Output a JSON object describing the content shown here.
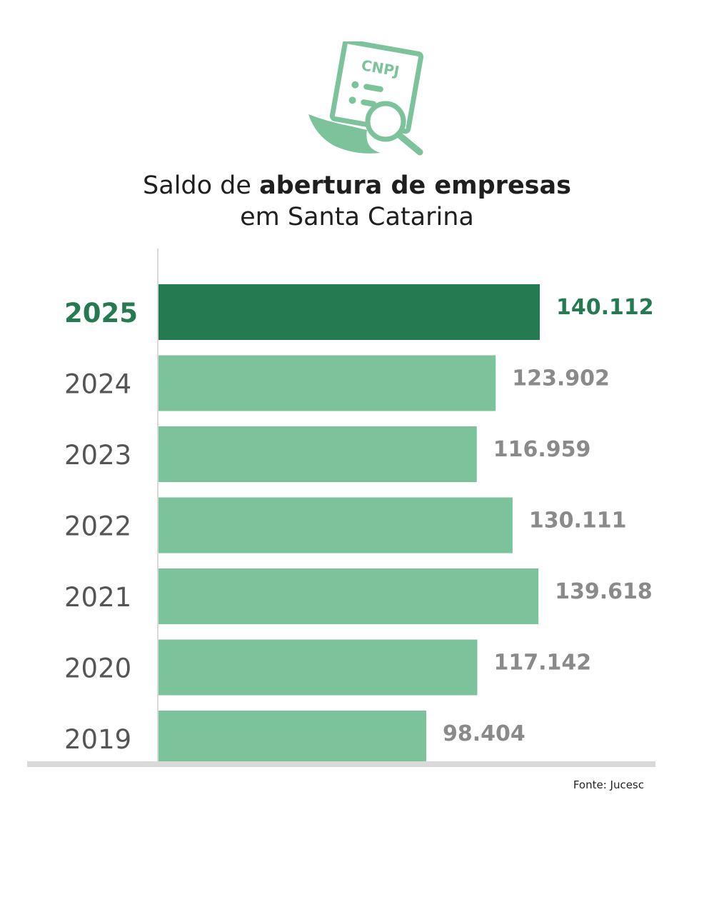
{
  "logo": {
    "text": "CNPJ",
    "icon": "cnpj-document-search-icon",
    "color": "#7cc39c"
  },
  "title": {
    "part1": "Saldo de ",
    "part2": "abertura de empresas",
    "line2": "em Santa Catarina"
  },
  "chart_data": {
    "type": "bar",
    "orientation": "horizontal",
    "categories": [
      "2025",
      "2024",
      "2023",
      "2022",
      "2021",
      "2020",
      "2019"
    ],
    "values": [
      140112,
      123902,
      116959,
      130111,
      139618,
      117142,
      98404
    ],
    "value_labels": [
      "140.112",
      "123.902",
      "116.959",
      "130.111",
      "139.618",
      "117.142",
      "98.404"
    ],
    "highlight": "2025",
    "colors": {
      "highlight": "#257a52",
      "bar": "#7cc39c",
      "label": "#8a8a8a",
      "axis": "#d9d9d9",
      "category": "#555555"
    },
    "xlim": [
      0,
      140112
    ],
    "grid": false
  },
  "source": "Fonte: Jucesc"
}
